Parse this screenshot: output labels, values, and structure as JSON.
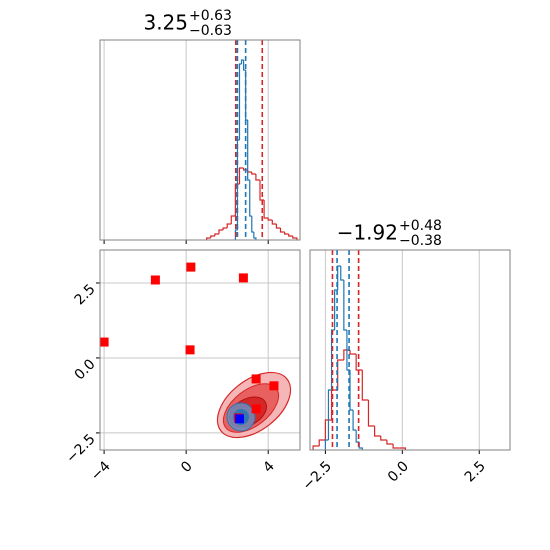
{
  "chart_data": [
    {
      "type": "hist",
      "title": {
        "value": "3.25",
        "plus": "+0.63",
        "minus": "−0.63"
      },
      "xlim": [
        -4.2,
        5.55
      ],
      "ylim": [
        0,
        1
      ],
      "xticks": [
        -4,
        0,
        4
      ],
      "grid": true,
      "series": [
        {
          "color": "#d62728",
          "bins": [
            1.0,
            1.2,
            1.4,
            1.6,
            1.8,
            2.0,
            2.2,
            2.4,
            2.6,
            2.8,
            3.0,
            3.2,
            3.4,
            3.6,
            3.8,
            4.0,
            4.2,
            4.4,
            4.6,
            4.8,
            5.0,
            5.2,
            5.4
          ],
          "values": [
            0.01,
            0.02,
            0.03,
            0.05,
            0.06,
            0.08,
            0.12,
            0.28,
            0.36,
            0.35,
            0.34,
            0.33,
            0.3,
            0.2,
            0.11,
            0.1,
            0.08,
            0.06,
            0.04,
            0.03,
            0.02,
            0.01
          ]
        },
        {
          "color": "#1f77b4",
          "bins": [
            2.4,
            2.5,
            2.6,
            2.7,
            2.8,
            2.9,
            3.0,
            3.1,
            3.2,
            3.3,
            3.4
          ],
          "values": [
            0.05,
            0.5,
            0.88,
            0.9,
            0.85,
            0.6,
            0.3,
            0.12,
            0.04,
            0.01
          ]
        }
      ],
      "quantiles": [
        {
          "color": "#d62728",
          "values": [
            2.42,
            3.71
          ]
        },
        {
          "color": "#1f77b4",
          "values": [
            2.5,
            2.9
          ]
        }
      ]
    },
    {
      "type": "scatter",
      "xlim": [
        -4.2,
        5.55
      ],
      "ylim": [
        -3.07,
        3.6
      ],
      "grid": true,
      "xticks": [
        {
          "value": -4,
          "label": "−4"
        },
        0,
        4
      ],
      "yticks": [
        {
          "value": -2.5,
          "label": "−2.5"
        },
        {
          "value": 0,
          "label": "0.0"
        },
        2.5
      ],
      "series": [
        {
          "color": "#ff0000",
          "x": [
            -4.0,
            -1.5,
            0.23,
            2.79,
            0.19,
            3.41,
            4.28,
            3.41,
            2.55
          ],
          "y": [
            0.53,
            2.6,
            3.03,
            2.67,
            0.27,
            -0.7,
            -0.93,
            -1.7,
            -2.0
          ]
        },
        {
          "color": "#0000ff",
          "x": [
            2.6
          ],
          "y": [
            -2.03
          ]
        }
      ]
    },
    {
      "type": "hist",
      "title": {
        "value": "−1.92",
        "plus": "+0.48",
        "minus": "−0.38"
      },
      "xlim": [
        -3.0,
        3.5
      ],
      "ylim": [
        0,
        1
      ],
      "grid": true,
      "xticks": [
        {
          "value": -2.5,
          "label": "−2.5"
        },
        {
          "value": 0,
          "label": "0.0"
        },
        2.5
      ],
      "series": [
        {
          "color": "#d62728",
          "bins": [
            -2.9,
            -2.7,
            -2.5,
            -2.3,
            -2.1,
            -1.9,
            -1.7,
            -1.5,
            -1.3,
            -1.1,
            -0.9,
            -0.7,
            -0.5,
            -0.3,
            -0.1,
            0.1
          ],
          "values": [
            0.02,
            0.05,
            0.15,
            0.3,
            0.45,
            0.5,
            0.48,
            0.4,
            0.25,
            0.12,
            0.07,
            0.05,
            0.03,
            0.01,
            0.01
          ]
        },
        {
          "color": "#1f77b4",
          "bins": [
            -2.5,
            -2.4,
            -2.3,
            -2.2,
            -2.1,
            -2.0,
            -1.9,
            -1.8,
            -1.7,
            -1.6,
            -1.5,
            -1.4,
            -1.3
          ],
          "values": [
            0.05,
            0.3,
            0.6,
            0.8,
            0.92,
            0.85,
            0.6,
            0.4,
            0.2,
            0.1,
            0.04,
            0.01
          ]
        }
      ],
      "quantiles": [
        {
          "color": "#d62728",
          "values": [
            -2.27,
            -1.42
          ]
        },
        {
          "color": "#1f77b4",
          "values": [
            -2.12,
            -1.73
          ]
        }
      ]
    }
  ]
}
